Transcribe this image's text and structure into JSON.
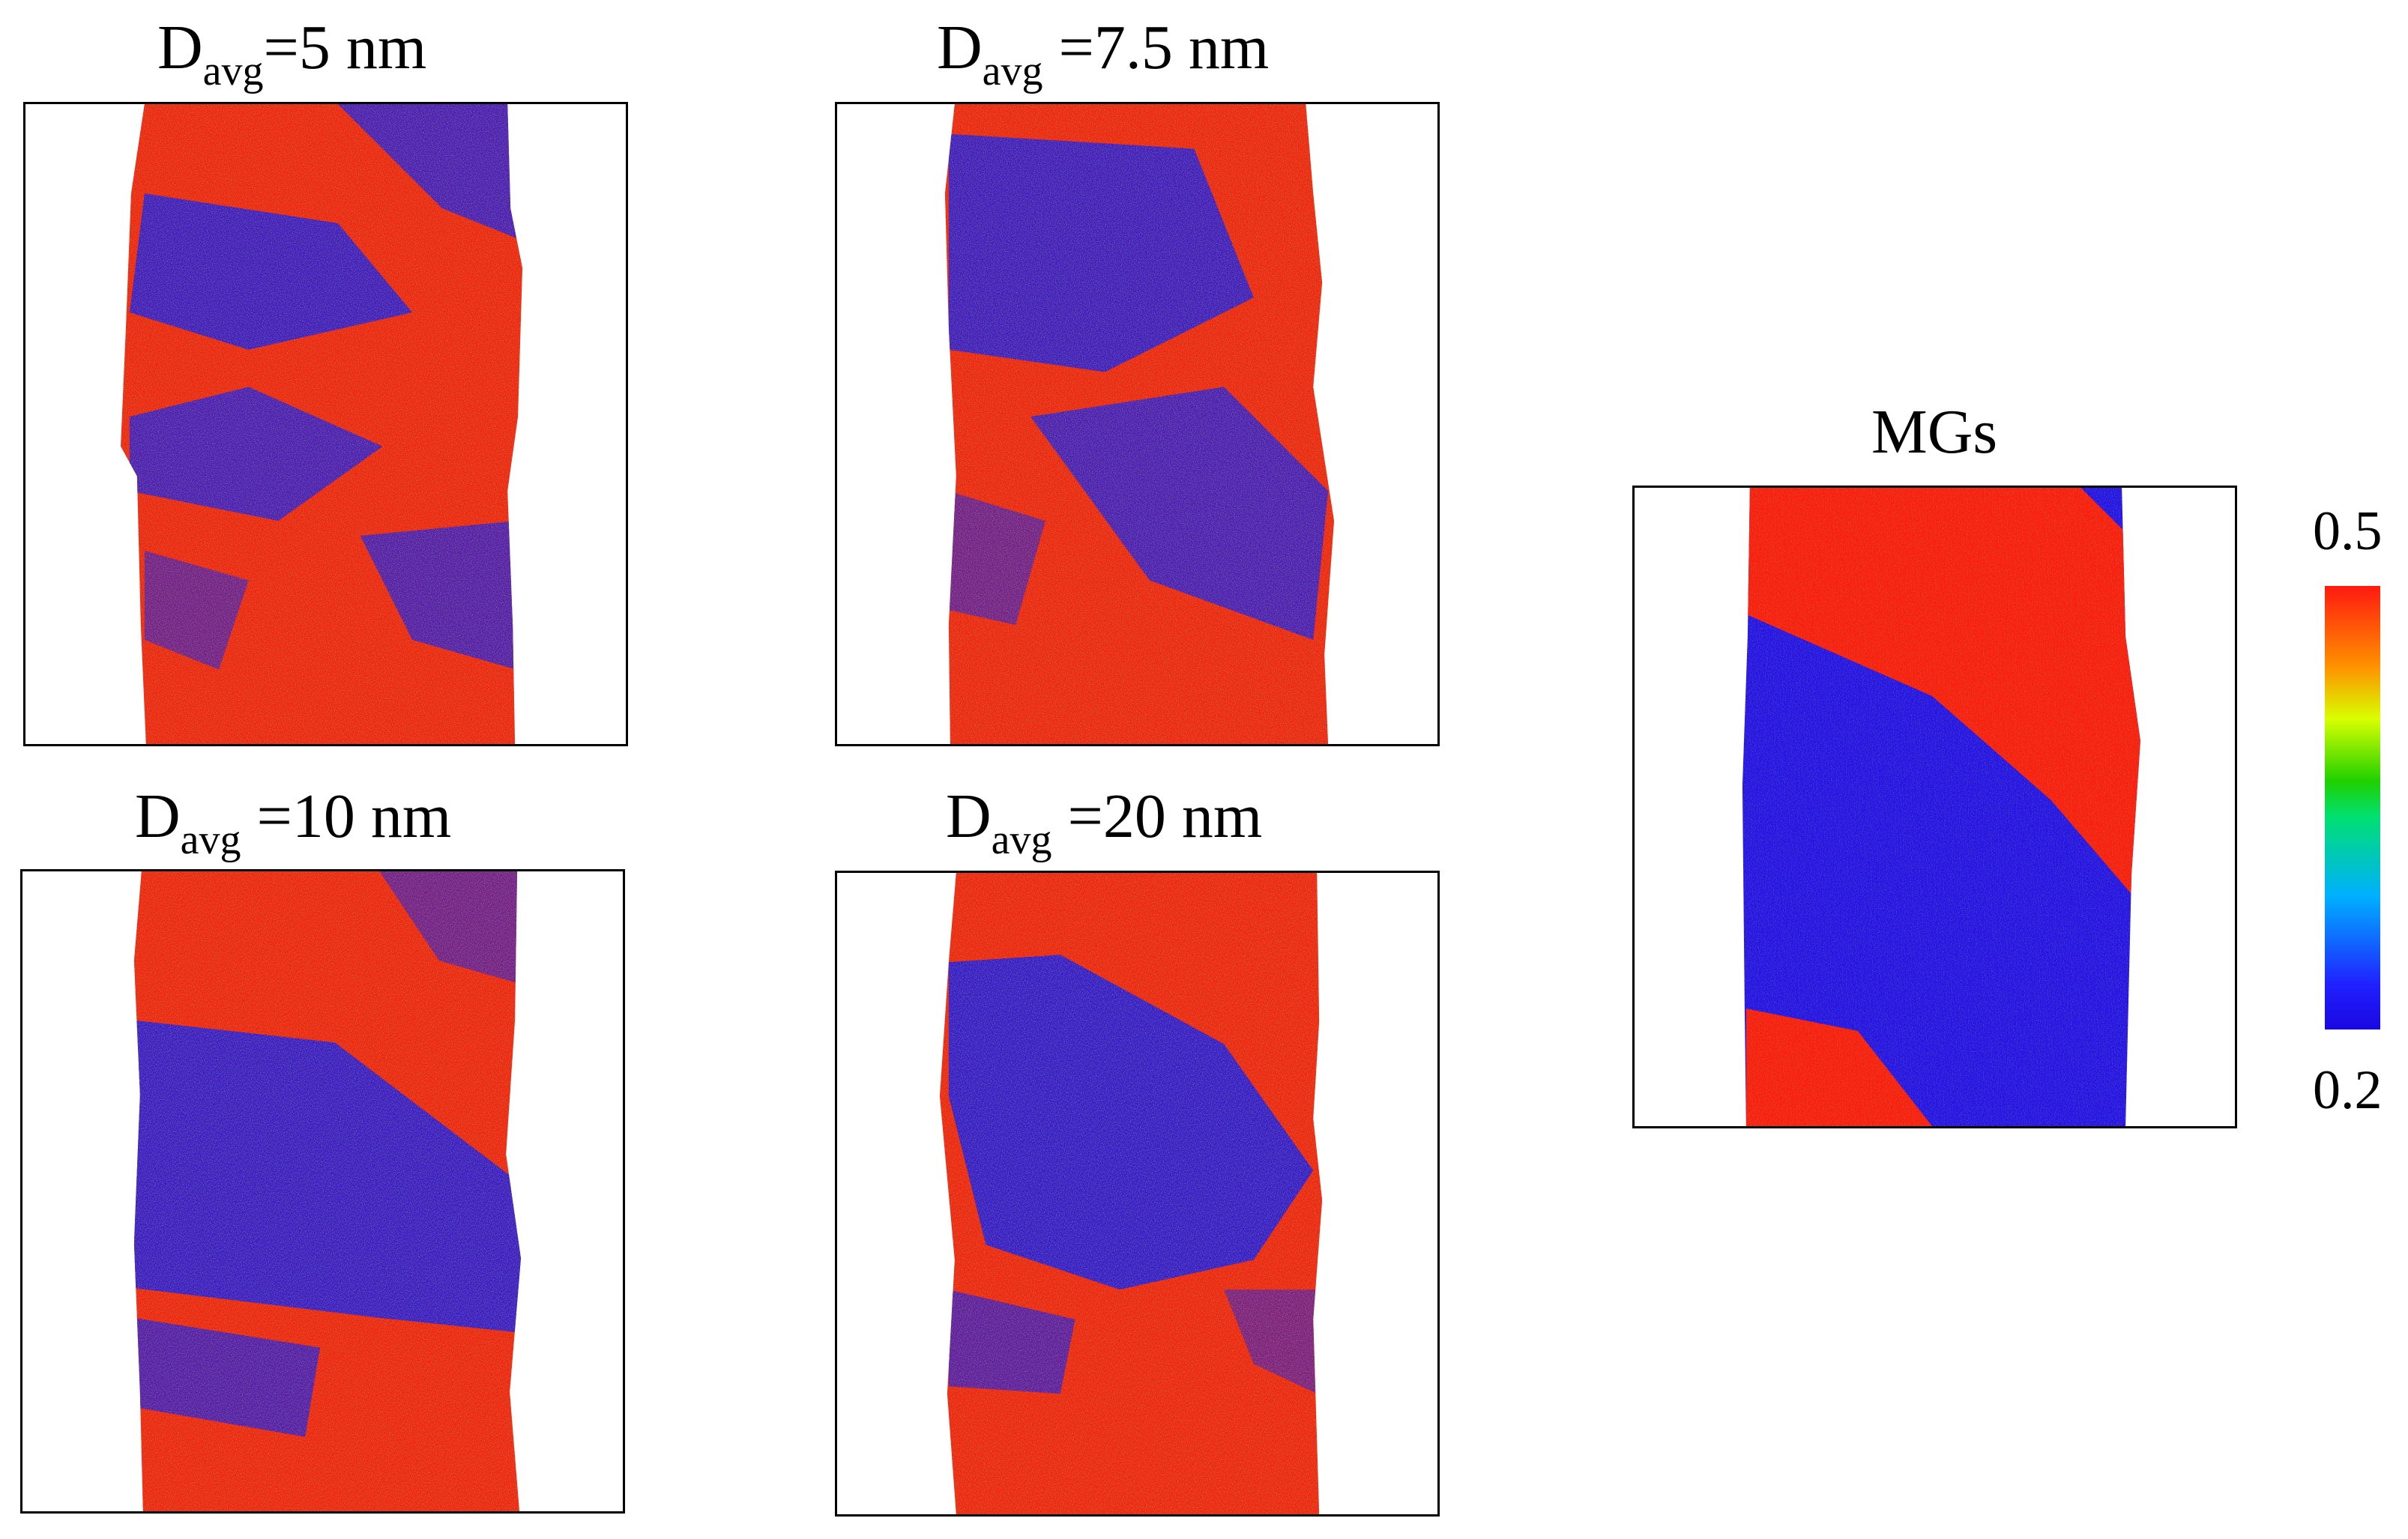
{
  "panels": [
    {
      "id": "p5",
      "title_main": "D",
      "title_sub": "avg",
      "title_rest": "=5 nm"
    },
    {
      "id": "p7_5",
      "title_main": "D",
      "title_sub": "avg",
      "title_rest": " =7.5 nm"
    },
    {
      "id": "p10",
      "title_main": "D",
      "title_sub": "avg",
      "title_rest": " =10 nm"
    },
    {
      "id": "p20",
      "title_main": "D",
      "title_sub": "avg",
      "title_rest": " =20 nm"
    },
    {
      "id": "mg",
      "title_main": "MGs",
      "title_sub": "",
      "title_rest": ""
    }
  ],
  "colorbar": {
    "max_label": "0.5",
    "min_label": "0.2",
    "colors": [
      "#1a08e0",
      "#00b0ff",
      "#20d000",
      "#d8ff00",
      "#ff9000",
      "#ff1a10"
    ]
  },
  "palette": {
    "red": "#ff1a10",
    "blue": "#2a10e8",
    "green": "#20c820",
    "yellow": "#e8e000",
    "cyan": "#10a0f0"
  }
}
